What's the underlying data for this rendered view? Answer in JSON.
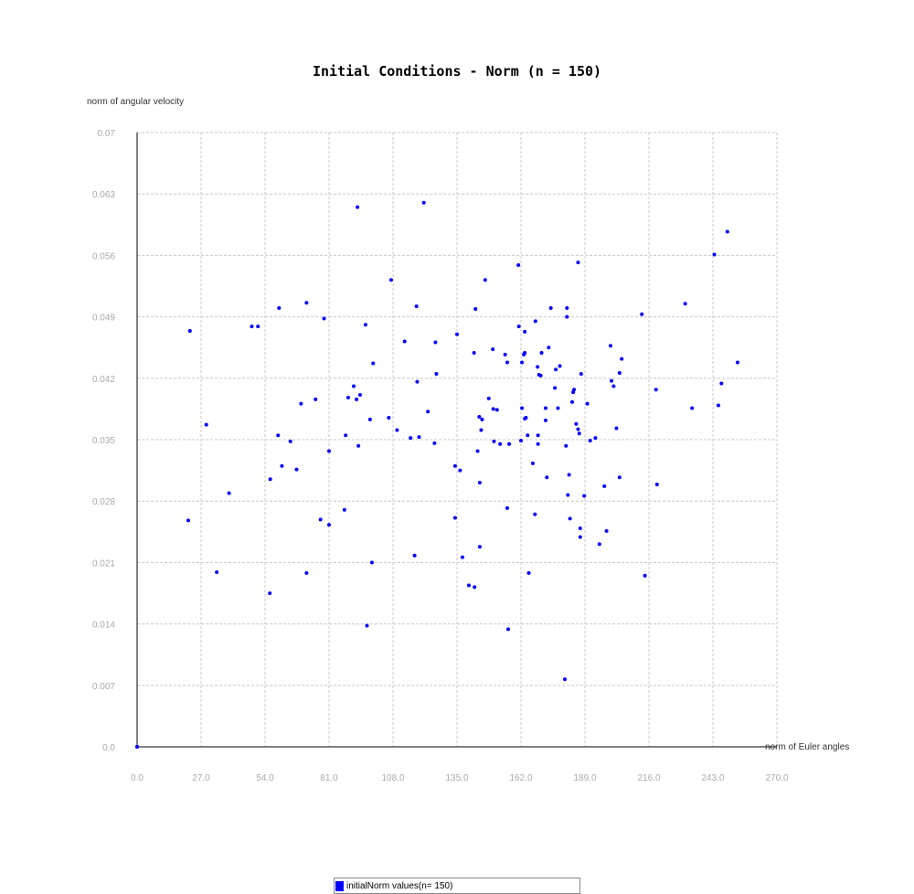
{
  "chart_data": {
    "type": "scatter",
    "title": "Initial Conditions - Norm (n = 150)",
    "xlabel": "norm of Euler angles",
    "ylabel": "norm of angular velocity",
    "xlim": [
      0,
      270
    ],
    "ylim": [
      0,
      0.07
    ],
    "x_ticks": [
      "0.0",
      "27.0",
      "54.0",
      "81.0",
      "108.0",
      "135.0",
      "162.0",
      "189.0",
      "216.0",
      "243.0",
      "270.0"
    ],
    "y_ticks": [
      "0.0",
      "0.007",
      "0.014",
      "0.021",
      "0.028",
      "0.035",
      "0.042",
      "0.049",
      "0.056",
      "0.063",
      "0.07"
    ],
    "grid": true,
    "legend_position": "bottom",
    "series": [
      {
        "name": "initialNorm values(n= 150)",
        "color": "#0000ff",
        "points": [
          [
            22.3,
            0.0474
          ],
          [
            21.6,
            0.0258
          ],
          [
            29.2,
            0.0367
          ],
          [
            33.6,
            0.0199
          ],
          [
            38.8,
            0.0289
          ],
          [
            48.4,
            0.0479
          ],
          [
            51.0,
            0.0479
          ],
          [
            56.0,
            0.0175
          ],
          [
            56.2,
            0.0305
          ],
          [
            59.5,
            0.0355
          ],
          [
            59.9,
            0.05
          ],
          [
            61.1,
            0.032
          ],
          [
            64.7,
            0.0348
          ],
          [
            67.3,
            0.0316
          ],
          [
            69.2,
            0.0391
          ],
          [
            71.5,
            0.0506
          ],
          [
            71.5,
            0.0198
          ],
          [
            75.3,
            0.0396
          ],
          [
            77.4,
            0.0259
          ],
          [
            78.9,
            0.0488
          ],
          [
            81.0,
            0.0337
          ],
          [
            81.0,
            0.0253
          ],
          [
            87.5,
            0.027
          ],
          [
            88.0,
            0.0355
          ],
          [
            89.1,
            0.0398
          ],
          [
            91.4,
            0.0411
          ],
          [
            92.6,
            0.0396
          ],
          [
            93.0,
            0.0615
          ],
          [
            93.4,
            0.0343
          ],
          [
            94.1,
            0.0401
          ],
          [
            96.4,
            0.0481
          ],
          [
            97.0,
            0.0138
          ],
          [
            98.3,
            0.0373
          ],
          [
            99.1,
            0.021
          ],
          [
            99.6,
            0.0437
          ],
          [
            106.2,
            0.0375
          ],
          [
            107.2,
            0.0532
          ],
          [
            109.7,
            0.0361
          ],
          [
            112.9,
            0.0462
          ],
          [
            115.4,
            0.0352
          ],
          [
            117.1,
            0.0218
          ],
          [
            117.9,
            0.0502
          ],
          [
            118.2,
            0.0416
          ],
          [
            119.0,
            0.0353
          ],
          [
            121.0,
            0.062
          ],
          [
            122.7,
            0.0382
          ],
          [
            125.5,
            0.0346
          ],
          [
            125.9,
            0.0461
          ],
          [
            126.3,
            0.0425
          ],
          [
            134.2,
            0.032
          ],
          [
            134.2,
            0.0261
          ],
          [
            135.0,
            0.047
          ],
          [
            136.3,
            0.0315
          ],
          [
            137.3,
            0.0216
          ],
          [
            140.0,
            0.0184
          ],
          [
            142.2,
            0.0449
          ],
          [
            142.4,
            0.0182
          ],
          [
            142.8,
            0.0499
          ],
          [
            143.7,
            0.0337
          ],
          [
            144.4,
            0.0376
          ],
          [
            144.6,
            0.0228
          ],
          [
            144.6,
            0.0301
          ],
          [
            145.2,
            0.0361
          ],
          [
            145.6,
            0.0373
          ],
          [
            146.9,
            0.0532
          ],
          [
            148.4,
            0.0397
          ],
          [
            150.1,
            0.0453
          ],
          [
            150.3,
            0.0385
          ],
          [
            150.6,
            0.0348
          ],
          [
            151.9,
            0.0384
          ],
          [
            153.2,
            0.0345
          ],
          [
            155.3,
            0.0447
          ],
          [
            156.2,
            0.0272
          ],
          [
            156.2,
            0.0438
          ],
          [
            156.6,
            0.0134
          ],
          [
            157.0,
            0.0345
          ],
          [
            160.9,
            0.0549
          ],
          [
            161.1,
            0.0479
          ],
          [
            162.0,
            0.0349
          ],
          [
            162.4,
            0.0386
          ],
          [
            162.4,
            0.0438
          ],
          [
            163.2,
            0.0447
          ],
          [
            163.6,
            0.0374
          ],
          [
            163.6,
            0.0449
          ],
          [
            163.6,
            0.0473
          ],
          [
            164.1,
            0.0375
          ],
          [
            164.8,
            0.0355
          ],
          [
            165.3,
            0.0198
          ],
          [
            167.0,
            0.0323
          ],
          [
            167.9,
            0.0265
          ],
          [
            168.1,
            0.0485
          ],
          [
            169.0,
            0.0433
          ],
          [
            169.2,
            0.0345
          ],
          [
            169.2,
            0.0355
          ],
          [
            169.6,
            0.0424
          ],
          [
            170.3,
            0.0423
          ],
          [
            170.7,
            0.0449
          ],
          [
            172.4,
            0.0386
          ],
          [
            172.4,
            0.0372
          ],
          [
            172.9,
            0.0307
          ],
          [
            173.7,
            0.0455
          ],
          [
            174.6,
            0.05
          ],
          [
            176.3,
            0.0409
          ],
          [
            176.7,
            0.043
          ],
          [
            177.6,
            0.0386
          ],
          [
            178.4,
            0.0434
          ],
          [
            180.5,
            0.0077
          ],
          [
            181.0,
            0.0343
          ],
          [
            181.4,
            0.05
          ],
          [
            181.4,
            0.049
          ],
          [
            181.8,
            0.0287
          ],
          [
            182.3,
            0.031
          ],
          [
            182.7,
            0.026
          ],
          [
            183.6,
            0.0393
          ],
          [
            184.0,
            0.0404
          ],
          [
            184.4,
            0.0407
          ],
          [
            185.3,
            0.0368
          ],
          [
            186.1,
            0.0552
          ],
          [
            186.1,
            0.0362
          ],
          [
            186.6,
            0.0357
          ],
          [
            187.0,
            0.0249
          ],
          [
            187.0,
            0.0239
          ],
          [
            187.4,
            0.0425
          ],
          [
            188.7,
            0.0286
          ],
          [
            190.0,
            0.0391
          ],
          [
            191.2,
            0.0349
          ],
          [
            193.4,
            0.0352
          ],
          [
            195.1,
            0.0231
          ],
          [
            197.2,
            0.0297
          ],
          [
            198.1,
            0.0246
          ],
          [
            199.8,
            0.0457
          ],
          [
            200.2,
            0.0417
          ],
          [
            201.1,
            0.0411
          ],
          [
            202.3,
            0.0363
          ],
          [
            203.6,
            0.0307
          ],
          [
            203.6,
            0.0426
          ],
          [
            204.5,
            0.0442
          ],
          [
            213.0,
            0.0493
          ],
          [
            214.3,
            0.0195
          ],
          [
            219.0,
            0.0407
          ],
          [
            219.4,
            0.0299
          ],
          [
            231.3,
            0.0505
          ],
          [
            234.2,
            0.0386
          ],
          [
            243.6,
            0.0561
          ],
          [
            245.3,
            0.0389
          ],
          [
            246.6,
            0.0414
          ],
          [
            249.1,
            0.0587
          ],
          [
            253.4,
            0.0438
          ],
          [
            0.0,
            0.0
          ],
          [
            0.0,
            0.0
          ]
        ]
      }
    ]
  }
}
